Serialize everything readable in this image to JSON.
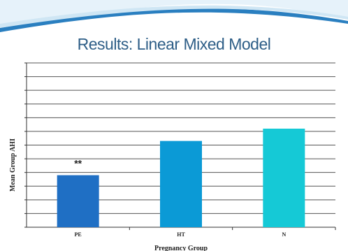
{
  "slide": {
    "title": "Results: Linear Mixed Model"
  },
  "chart_data": {
    "type": "bar",
    "title": "",
    "xlabel": "Pregnancy Group",
    "ylabel": "Mean Group AHI",
    "categories": [
      "PE",
      "HT",
      "N"
    ],
    "values": [
      3.8,
      6.3,
      7.2
    ],
    "ylim": [
      0,
      12
    ],
    "grid": true,
    "colors": [
      "#1f6fc4",
      "#0b9ad6",
      "#15c9d6"
    ],
    "annotations": [
      {
        "category": "PE",
        "text": "**"
      }
    ]
  },
  "colors": {
    "title": "#2e5e87",
    "swoosh_light": "#cfe6f4",
    "swoosh_dark": "#2a7fc0"
  }
}
